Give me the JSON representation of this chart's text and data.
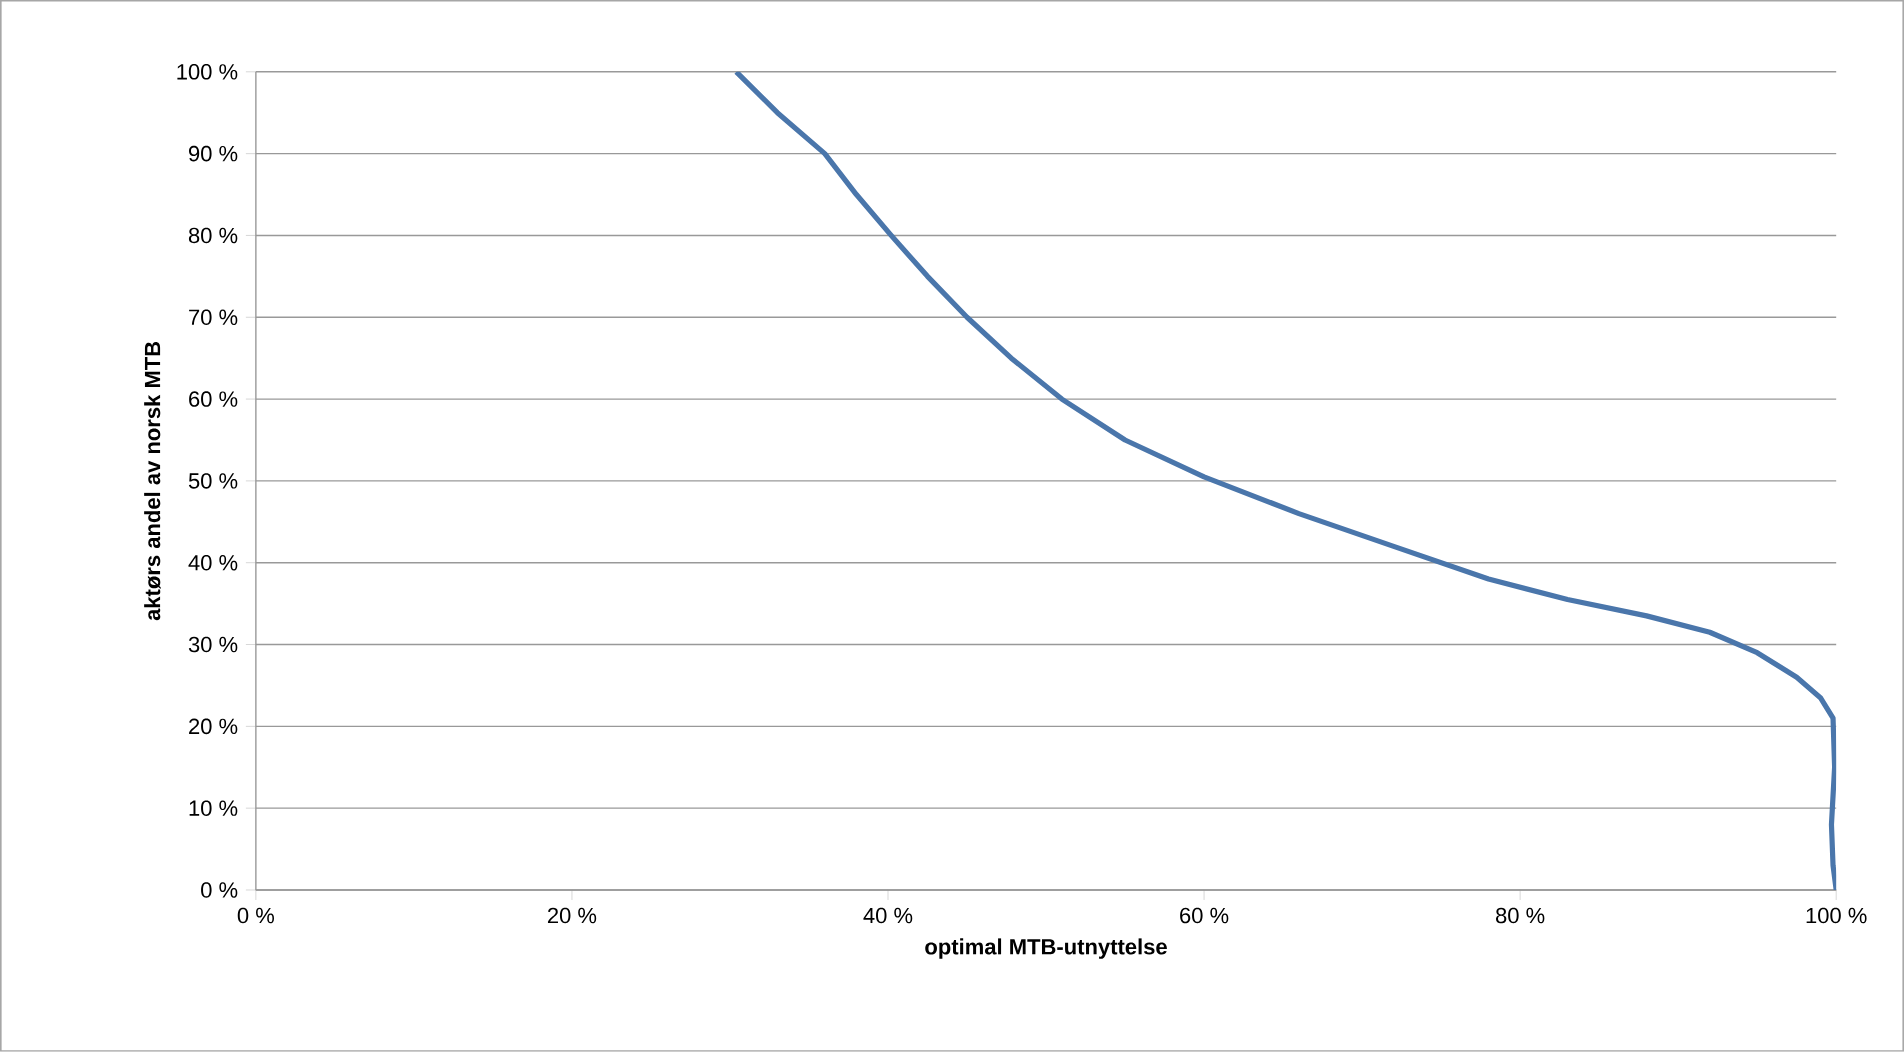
{
  "chart_data": {
    "type": "line",
    "xlabel": "optimal MTB-utnyttelse",
    "ylabel": "aktørs andel av norsk MTB",
    "x": [
      30.4,
      33,
      36,
      38,
      40.2,
      42.5,
      45,
      47.8,
      51,
      55,
      60,
      66,
      72,
      78,
      83,
      88,
      92,
      95,
      97.5,
      99,
      99.8,
      99.9,
      99.7,
      99.8,
      100
    ],
    "series": [
      {
        "color": "#4a76ab",
        "values": [
          100,
          95,
          90,
          85,
          80,
          75,
          70,
          65,
          60,
          55,
          50.5,
          46,
          42,
          38,
          35.5,
          33.5,
          31.5,
          29,
          26,
          23.5,
          21,
          15,
          8,
          3,
          0
        ]
      }
    ],
    "xlim": [
      0,
      100
    ],
    "ylim": [
      0,
      100
    ],
    "xticks": [
      {
        "value": 0,
        "label": "0 %"
      },
      {
        "value": 20,
        "label": "20 %"
      },
      {
        "value": 40,
        "label": "40 %"
      },
      {
        "value": 60,
        "label": "60 %"
      },
      {
        "value": 80,
        "label": "80 %"
      },
      {
        "value": 100,
        "label": "100 %"
      }
    ],
    "yticks": [
      {
        "value": 0,
        "label": "0 %"
      },
      {
        "value": 10,
        "label": "10 %"
      },
      {
        "value": 20,
        "label": "20 %"
      },
      {
        "value": 30,
        "label": "30 %"
      },
      {
        "value": 40,
        "label": "40 %"
      },
      {
        "value": 50,
        "label": "50 %"
      },
      {
        "value": 60,
        "label": "60 %"
      },
      {
        "value": 70,
        "label": "70 %"
      },
      {
        "value": 80,
        "label": "80 %"
      },
      {
        "value": 90,
        "label": "90 %"
      },
      {
        "value": 100,
        "label": "100 %"
      }
    ],
    "grid": "y"
  }
}
